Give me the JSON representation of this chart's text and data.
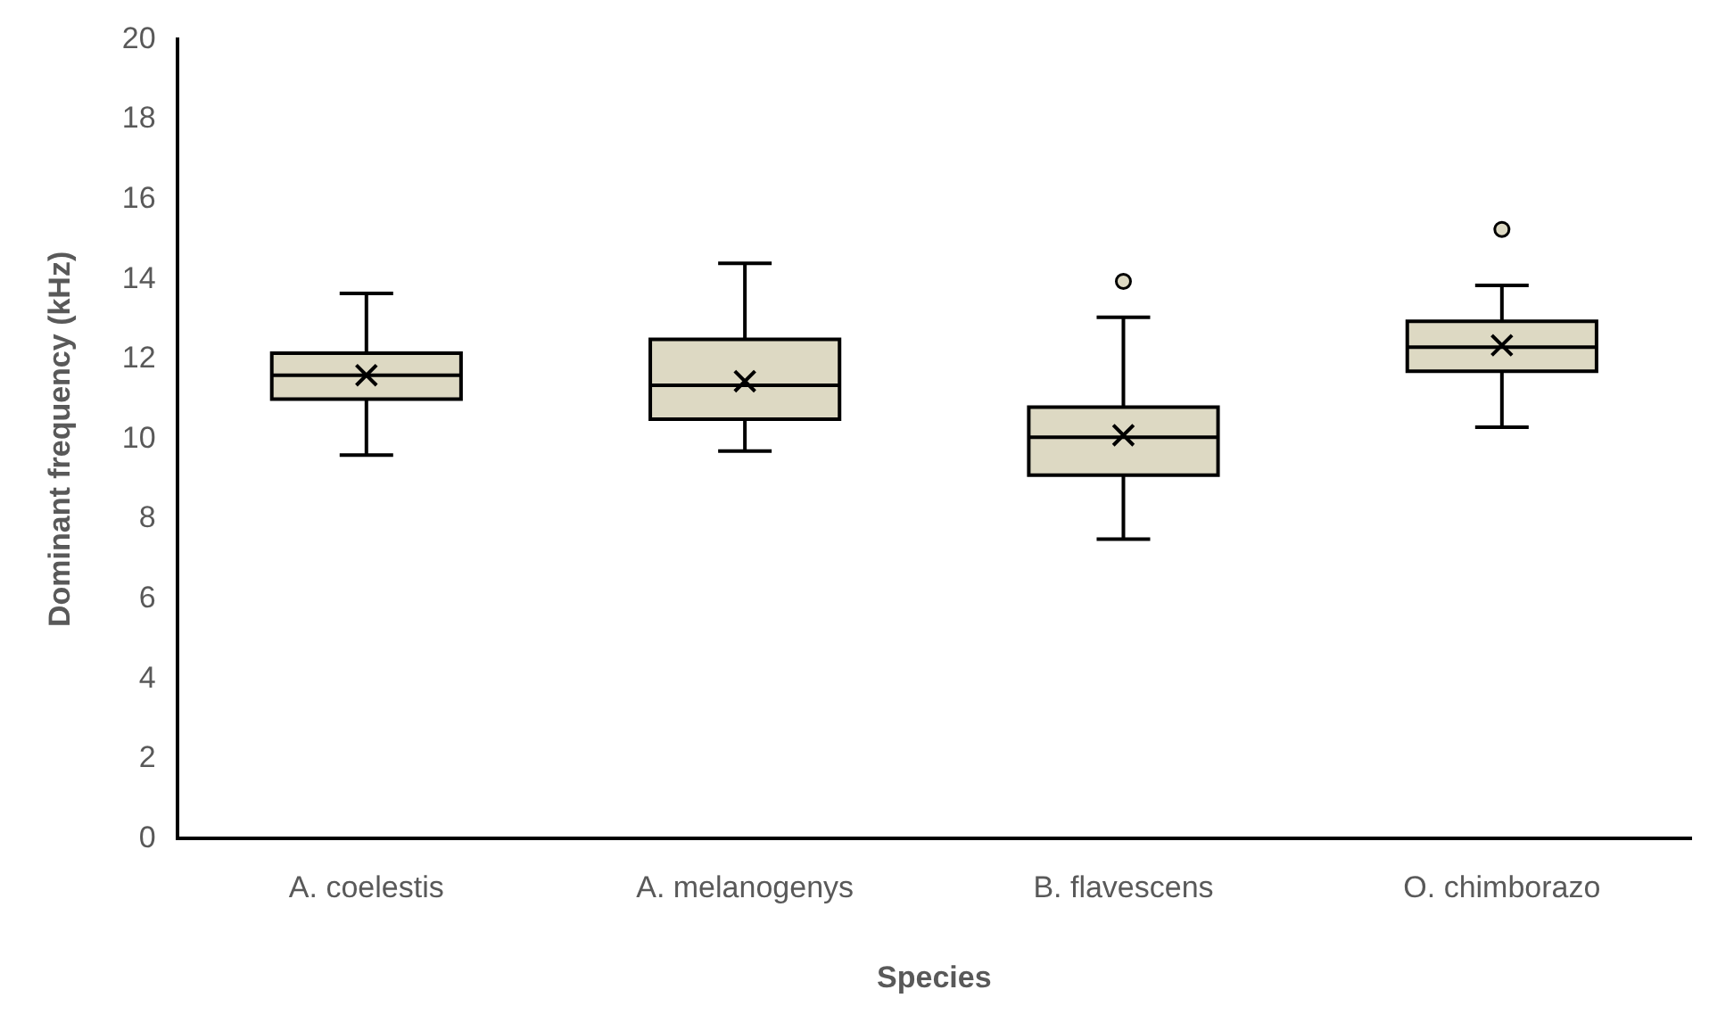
{
  "chart_data": {
    "type": "box",
    "xlabel": "Species",
    "ylabel": "Dominant frequency (kHz)",
    "categories": [
      "A. coelestis",
      "A. melanogenys",
      "B. flavescens",
      "O. chimborazo"
    ],
    "color": "#ddd9c3",
    "boxes": [
      {
        "low": 9.6,
        "q1": 11.0,
        "median": 11.6,
        "q3": 12.15,
        "high": 13.65,
        "mean": 11.6
      },
      {
        "low": 9.7,
        "q1": 10.5,
        "median": 11.35,
        "q3": 12.5,
        "high": 14.4,
        "mean": 11.45
      },
      {
        "low": 7.5,
        "q1": 9.1,
        "median": 10.05,
        "q3": 10.8,
        "high": 13.05,
        "mean": 10.1,
        "outliers": [
          13.95
        ]
      },
      {
        "low": 10.3,
        "q1": 11.7,
        "median": 12.3,
        "q3": 12.95,
        "high": 13.85,
        "mean": 12.35,
        "outliers": [
          15.25
        ]
      }
    ],
    "ylim": [
      0,
      20
    ],
    "yticks": [
      0,
      2,
      4,
      6,
      8,
      10,
      12,
      14,
      16,
      18,
      20
    ],
    "grid": false,
    "legend": false
  }
}
